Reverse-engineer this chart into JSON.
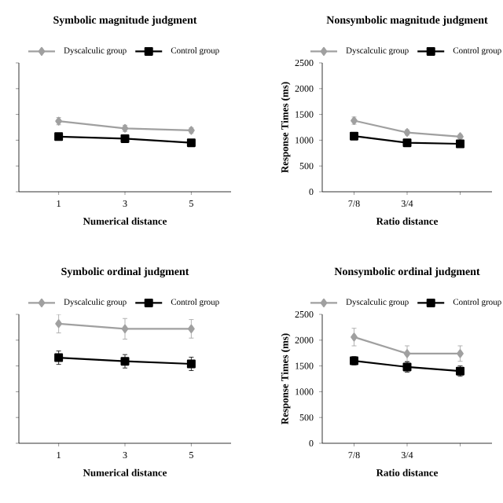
{
  "chart_data": [
    {
      "type": "line",
      "title": "Symbolic magnitude judgment",
      "xlabel": "Numerical distance",
      "categories": [
        "1",
        "3",
        "5"
      ],
      "ylim": [
        0,
        2500
      ],
      "yticks": [
        0,
        500,
        1000,
        1500,
        2000,
        2500
      ],
      "tick_labels": "x",
      "legend": "top",
      "line_style": "solid",
      "series": [
        {
          "name": "Dyscalculic group",
          "color": "#a0a0a0",
          "marker": "diamond",
          "values": [
            1370,
            1230,
            1190
          ],
          "errors": [
            70,
            60,
            50
          ]
        },
        {
          "name": "Control group",
          "color": "#000000",
          "marker": "square",
          "values": [
            1070,
            1030,
            950
          ],
          "errors": [
            30,
            30,
            30
          ]
        }
      ]
    },
    {
      "type": "line",
      "title": "Nonsymbolic magnitude judgment",
      "xlabel": "Ratio distance",
      "ylabel": "Response Times (ms)",
      "categories": [
        "7/8",
        "3/4",
        null
      ],
      "ylim": [
        0,
        2500
      ],
      "yticks": [
        0,
        500,
        1000,
        1500,
        2000,
        2500
      ],
      "legend": "top",
      "line_style": "solid",
      "series": [
        {
          "name": "Dyscalculic group",
          "color": "#a0a0a0",
          "marker": "diamond",
          "values": [
            1380,
            1150,
            1070
          ],
          "errors": [
            70,
            50,
            40
          ]
        },
        {
          "name": "Control group",
          "color": "#000000",
          "marker": "square",
          "values": [
            1080,
            950,
            930
          ],
          "errors": [
            30,
            30,
            30
          ]
        }
      ]
    },
    {
      "type": "line",
      "title": "Symbolic ordinal judgment",
      "xlabel": "Numerical distance",
      "categories": [
        "1",
        "3",
        "5"
      ],
      "ylim": [
        0,
        2500
      ],
      "yticks": [
        0,
        500,
        1000,
        1500,
        2000,
        2500
      ],
      "tick_labels": "x",
      "legend": "top",
      "line_style": "solid",
      "series": [
        {
          "name": "Dyscalculic group",
          "color": "#a0a0a0",
          "marker": "diamond",
          "values": [
            2320,
            2220,
            2220
          ],
          "errors": [
            180,
            200,
            180
          ]
        },
        {
          "name": "Control group",
          "color": "#000000",
          "marker": "square",
          "values": [
            1660,
            1590,
            1540
          ],
          "errors": [
            130,
            130,
            130
          ]
        }
      ]
    },
    {
      "type": "line",
      "title": "Nonsymbolic ordinal judgment",
      "xlabel": "Ratio distance",
      "ylabel": "Response Times (ms)",
      "categories": [
        "7/8",
        "3/4",
        null
      ],
      "ylim": [
        0,
        2500
      ],
      "yticks": [
        0,
        500,
        1000,
        1500,
        2000,
        2500
      ],
      "legend": "top",
      "line_style": "solid",
      "series": [
        {
          "name": "Dyscalculic group",
          "color": "#a0a0a0",
          "marker": "diamond",
          "values": [
            2060,
            1740,
            1740
          ],
          "errors": [
            170,
            150,
            150
          ]
        },
        {
          "name": "Control group",
          "color": "#000000",
          "marker": "square",
          "values": [
            1600,
            1480,
            1400
          ],
          "errors": [
            80,
            100,
            100
          ]
        }
      ]
    }
  ]
}
